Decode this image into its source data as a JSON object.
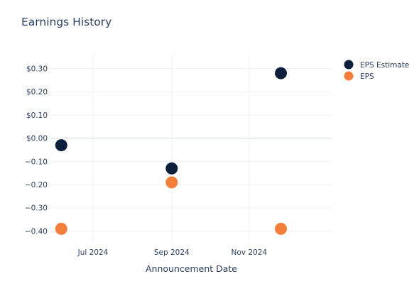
{
  "chart_data": {
    "type": "scatter",
    "title": "Earnings History",
    "xlabel": "Announcement Date",
    "ylabel": "",
    "x_ticks": [
      {
        "date": "2024-07-01",
        "label": "Jul 2024"
      },
      {
        "date": "2024-09-01",
        "label": "Sep 2024"
      },
      {
        "date": "2024-11-01",
        "label": "Nov 2024"
      }
    ],
    "y_ticks": [
      0.3,
      0.2,
      0.1,
      0.0,
      -0.1,
      -0.2,
      -0.3,
      -0.4
    ],
    "y_tick_labels": [
      "$0.30",
      "$0.20",
      "$0.10",
      "$0.00",
      "−0.10",
      "−0.20",
      "−0.30",
      "−0.40"
    ],
    "xlim": [
      "2024-05-29",
      "2025-01-05"
    ],
    "ylim": [
      -0.45,
      0.36
    ],
    "legend_position": "top-right",
    "grid": true,
    "series": [
      {
        "name": "EPS Estimate",
        "color": "#0d1f3c",
        "points": [
          {
            "x": "2024-06-06",
            "y": -0.03
          },
          {
            "x": "2024-09-01",
            "y": -0.13
          },
          {
            "x": "2024-11-26",
            "y": 0.28
          }
        ]
      },
      {
        "name": "EPS",
        "color": "#f47f3b",
        "points": [
          {
            "x": "2024-06-06",
            "y": -0.39
          },
          {
            "x": "2024-09-01",
            "y": -0.19
          },
          {
            "x": "2024-11-26",
            "y": -0.39
          }
        ]
      }
    ]
  }
}
